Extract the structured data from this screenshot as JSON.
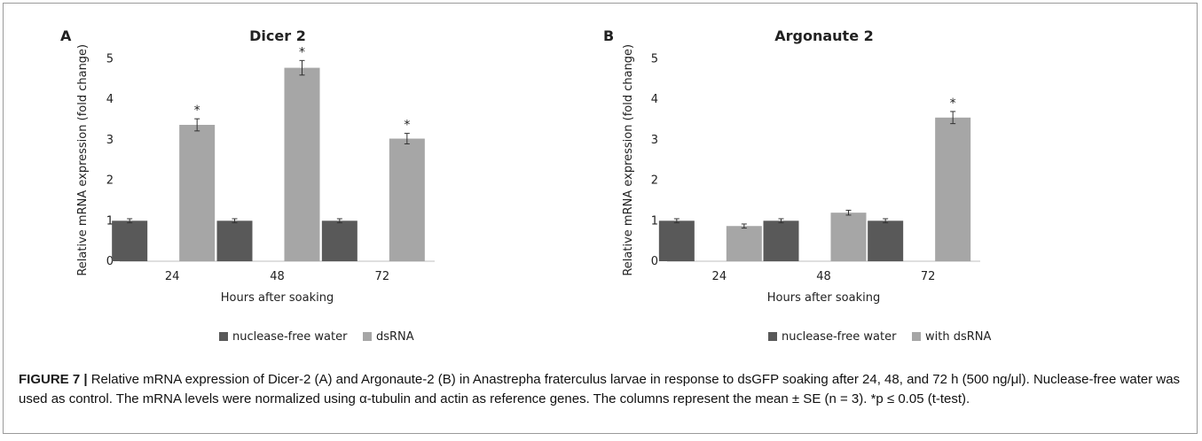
{
  "colors": {
    "control": "#595959",
    "dsrna": "#a6a6a6",
    "axis": "#bfbfbf",
    "text": "#222222"
  },
  "chart_data": [
    {
      "type": "bar",
      "panel_label": "A",
      "title": "Dicer 2",
      "xlabel": "Hours after soaking",
      "ylabel": "Relative mRNA expression (fold change)",
      "ylim": [
        0,
        5
      ],
      "yticks": [
        "0",
        "1",
        "2",
        "3",
        "4",
        "5"
      ],
      "categories": [
        "24",
        "48",
        "72"
      ],
      "grid": false,
      "legend_position": "bottom",
      "series": [
        {
          "name": "nuclease-free water",
          "values": [
            1.0,
            1.0,
            1.0
          ],
          "errors": [
            0.05,
            0.05,
            0.05
          ],
          "marks": [
            "",
            "",
            ""
          ]
        },
        {
          "name": "dsRNA",
          "values": [
            3.37,
            4.78,
            3.03
          ],
          "errors": [
            0.15,
            0.18,
            0.13
          ],
          "marks": [
            "*",
            "*",
            "*"
          ]
        }
      ]
    },
    {
      "type": "bar",
      "panel_label": "B",
      "title": "Argonaute 2",
      "xlabel": "Hours after soaking",
      "ylabel": "Relative mRNA expression (fold change)",
      "ylim": [
        0,
        5
      ],
      "yticks": [
        "0",
        "1",
        "2",
        "3",
        "4",
        "5"
      ],
      "categories": [
        "24",
        "48",
        "72"
      ],
      "grid": false,
      "legend_position": "bottom",
      "series": [
        {
          "name": "nuclease-free water",
          "values": [
            1.0,
            1.0,
            1.0
          ],
          "errors": [
            0.05,
            0.05,
            0.05
          ],
          "marks": [
            "",
            "",
            ""
          ]
        },
        {
          "name": "with dsRNA",
          "values": [
            0.87,
            1.2,
            3.55
          ],
          "errors": [
            0.05,
            0.06,
            0.15
          ],
          "marks": [
            "",
            "",
            "*"
          ]
        }
      ]
    }
  ],
  "caption": {
    "label": "FIGURE 7 |",
    "text": "Relative mRNA expression of Dicer-2 (A) and Argonaute-2 (B) in Anastrepha fraterculus larvae in response to dsGFP soaking after 24, 48, and 72 h (500 ng/μl). Nuclease-free water was used as control. The mRNA levels were normalized using α-tubulin and actin as reference genes. The columns represent the mean ± SE (n = 3). *p ≤ 0.05 (t-test)."
  }
}
